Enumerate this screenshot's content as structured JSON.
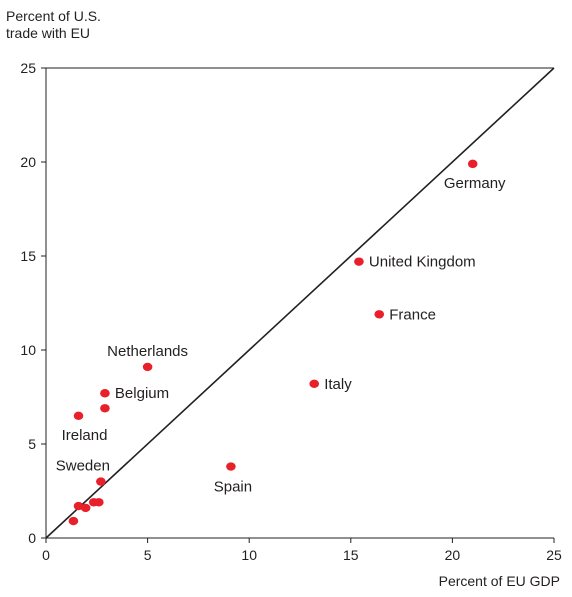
{
  "chart_data": {
    "type": "scatter",
    "ylabel_lines": [
      "Percent of U.S.",
      "trade with EU"
    ],
    "xlabel": "Percent of EU GDP",
    "xlim": [
      0,
      25
    ],
    "ylim": [
      0,
      25
    ],
    "xticks": [
      0,
      5,
      10,
      15,
      20,
      25
    ],
    "yticks": [
      0,
      5,
      10,
      15,
      20,
      25
    ],
    "grid": false,
    "reference_line": {
      "from": [
        0,
        0
      ],
      "to": [
        25,
        25
      ]
    },
    "point_color": "#e8202a",
    "points": [
      {
        "label": "Germany",
        "x": 21.0,
        "y": 19.9,
        "label_pos": "below"
      },
      {
        "label": "United Kingdom",
        "x": 15.4,
        "y": 14.7,
        "label_pos": "right"
      },
      {
        "label": "France",
        "x": 16.4,
        "y": 11.9,
        "label_pos": "right"
      },
      {
        "label": "Italy",
        "x": 13.2,
        "y": 8.2,
        "label_pos": "right"
      },
      {
        "label": "Netherlands",
        "x": 5.0,
        "y": 9.1,
        "label_pos": "above"
      },
      {
        "label": "Belgium",
        "x": 2.9,
        "y": 7.7,
        "label_pos": "right"
      },
      {
        "label": "",
        "x": 2.9,
        "y": 6.9,
        "label_pos": "none"
      },
      {
        "label": "Ireland",
        "x": 1.6,
        "y": 6.5,
        "label_pos": "below"
      },
      {
        "label": "Spain",
        "x": 9.1,
        "y": 3.8,
        "label_pos": "below"
      },
      {
        "label": "Sweden",
        "x": 2.7,
        "y": 3.0,
        "label_pos": "above"
      },
      {
        "label": "",
        "x": 1.6,
        "y": 1.7,
        "label_pos": "none"
      },
      {
        "label": "",
        "x": 1.95,
        "y": 1.6,
        "label_pos": "none"
      },
      {
        "label": "",
        "x": 2.35,
        "y": 1.9,
        "label_pos": "none"
      },
      {
        "label": "",
        "x": 2.6,
        "y": 1.9,
        "label_pos": "none"
      },
      {
        "label": "",
        "x": 1.35,
        "y": 0.9,
        "label_pos": "none"
      }
    ]
  }
}
